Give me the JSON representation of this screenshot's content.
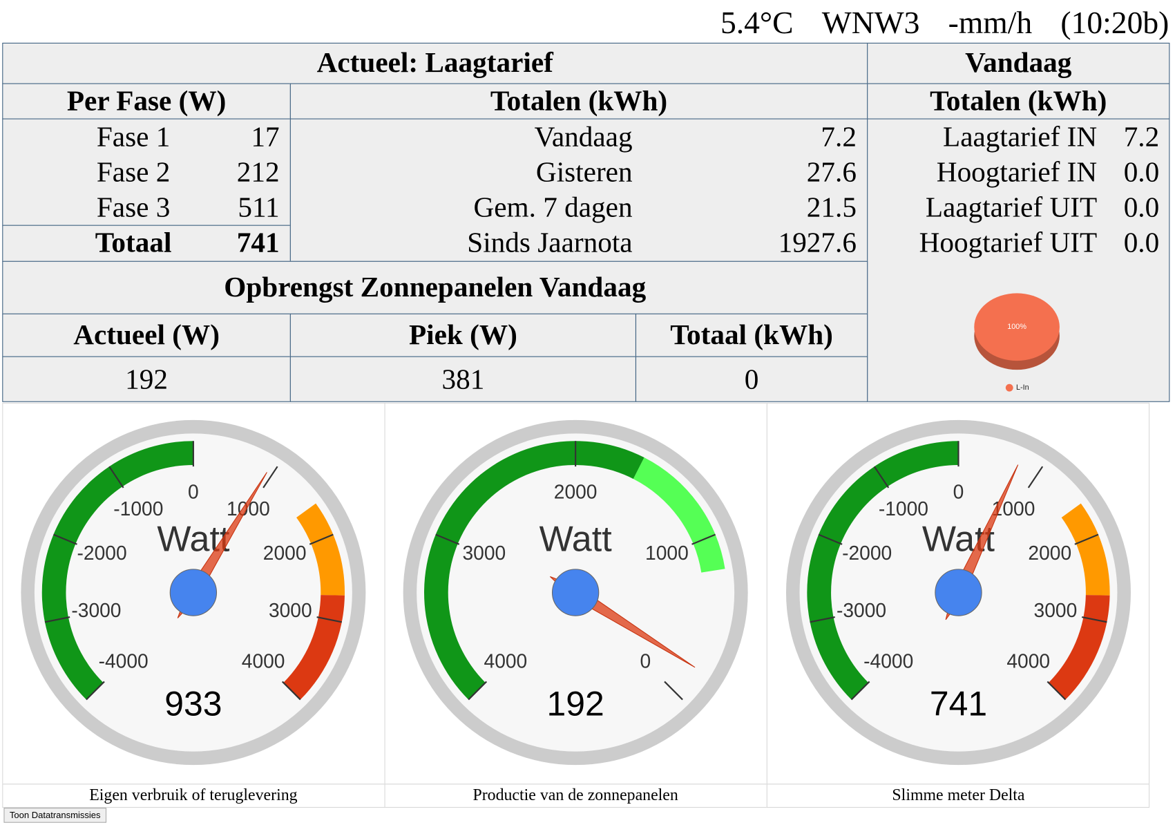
{
  "weather": [
    "5.4°C",
    "WNW3",
    "-mm/h",
    "(10:20b)"
  ],
  "table": {
    "title": "Actueel: Laagtarief",
    "today_title": "Vandaag",
    "per_phase": {
      "header": "Per Fase (W)",
      "rows": [
        [
          "Fase 1",
          "17"
        ],
        [
          "Fase 2",
          "212"
        ],
        [
          "Fase 3",
          "511"
        ]
      ],
      "total": [
        "Totaal",
        "741"
      ]
    },
    "totals": {
      "header": "Totalen (kWh)",
      "rows": [
        [
          "Vandaag",
          "7.2"
        ],
        [
          "Gisteren",
          "27.6"
        ],
        [
          "Gem. 7 dagen",
          "21.5"
        ],
        [
          "Sinds Jaarnota",
          "1927.6"
        ]
      ]
    },
    "today": {
      "header": "Totalen (kWh)",
      "rows": [
        [
          "Laagtarief IN",
          "7.2"
        ],
        [
          "Hoogtarief IN",
          "0.0"
        ],
        [
          "Laagtarief UIT",
          "0.0"
        ],
        [
          "Hoogtarief UIT",
          "0.0"
        ]
      ]
    },
    "solar": {
      "title": "Opbrengst Zonnepanelen Vandaag",
      "headers": [
        "Actueel (W)",
        "Piek (W)",
        "Totaal (kWh)"
      ],
      "values": [
        "192",
        "381",
        "0"
      ]
    }
  },
  "pie": {
    "type": "pie",
    "values": [
      100
    ],
    "value_labels": [
      "100%"
    ],
    "labels": [
      "L-In"
    ],
    "colors": [
      "#f4704f"
    ]
  },
  "gauges": [
    {
      "unit": "Watt",
      "value": 933,
      "lim": [
        -4000,
        4000
      ],
      "ticks": [
        -4000,
        -3000,
        -2000,
        -1000,
        0,
        1000,
        2000,
        3000,
        4000
      ],
      "bands": [
        {
          "from": -4000,
          "to": 0,
          "color": "#109618"
        },
        {
          "from": 1600,
          "to": 2700,
          "color": "#ff9900"
        },
        {
          "from": 2700,
          "to": 4000,
          "color": "#dc3912"
        }
      ],
      "caption": "Eigen verbruik of teruglevering"
    },
    {
      "unit": "Watt",
      "value": 192,
      "lim": [
        4000,
        0
      ],
      "ticks": [
        4000,
        3000,
        2000,
        1000,
        0
      ],
      "bands": [
        {
          "from": 4000,
          "to": 1600,
          "color": "#109618"
        },
        {
          "from": 1600,
          "to": 800,
          "color": "#55ff55"
        }
      ],
      "caption": "Productie van de zonnepanelen"
    },
    {
      "unit": "Watt",
      "value": 741,
      "lim": [
        -4000,
        4000
      ],
      "ticks": [
        -4000,
        -3000,
        -2000,
        -1000,
        0,
        1000,
        2000,
        3000,
        4000
      ],
      "bands": [
        {
          "from": -4000,
          "to": 0,
          "color": "#109618"
        },
        {
          "from": 1600,
          "to": 2700,
          "color": "#ff9900"
        },
        {
          "from": 2700,
          "to": 4000,
          "color": "#dc3912"
        }
      ],
      "caption": "Slimme meter Delta"
    }
  ],
  "button": "Toon Datatransmissies"
}
